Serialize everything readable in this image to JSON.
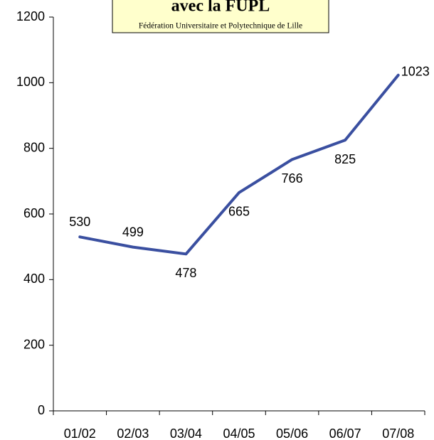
{
  "chart_data": {
    "type": "line",
    "title": "avec la FUPL",
    "subtitle": "Fédération Universitaire et Polytechnique de Lille",
    "categories": [
      "01/02",
      "02/03",
      "03/04",
      "04/05",
      "05/06",
      "06/07",
      "07/08"
    ],
    "series": [
      {
        "name": "FUPL",
        "color": "#3a4fa0",
        "values": [
          530,
          499,
          478,
          665,
          766,
          825,
          1023
        ]
      }
    ],
    "ylim": [
      0,
      1200
    ],
    "yticks": [
      0,
      200,
      400,
      600,
      800,
      1000,
      1200
    ]
  }
}
